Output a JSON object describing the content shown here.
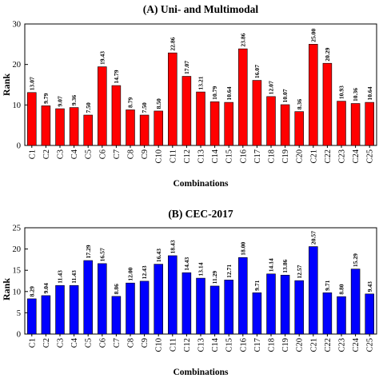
{
  "chart_data": [
    {
      "type": "bar",
      "title": "(A) Uni- and Multimodal",
      "xlabel": "Combinations",
      "ylabel": "Rank",
      "ylim": [
        0,
        30
      ],
      "yticks": [
        "0",
        "10",
        "20",
        "30"
      ],
      "color": "#ff0000",
      "categories": [
        "C1",
        "C2",
        "C3",
        "C4",
        "C5",
        "C6",
        "C7",
        "C8",
        "C9",
        "C10",
        "C11",
        "C12",
        "C13",
        "C14",
        "C15",
        "C16",
        "C17",
        "C18",
        "C19",
        "C20",
        "C21",
        "C22",
        "C23",
        "C24",
        "C25"
      ],
      "values": [
        13.07,
        9.79,
        9.07,
        9.36,
        7.5,
        19.43,
        14.79,
        8.79,
        7.5,
        8.5,
        22.86,
        17.07,
        13.21,
        10.79,
        10.64,
        23.86,
        16.07,
        12.07,
        10.07,
        8.36,
        25.0,
        20.29,
        10.93,
        10.36,
        10.64
      ],
      "labels": [
        "13.07",
        "9.79",
        "9.07",
        "9.36",
        "7.50",
        "19.43",
        "14.79",
        "8.79",
        "7.50",
        "8.50",
        "22.86",
        "17.07",
        "13.21",
        "10.79",
        "10.64",
        "23.86",
        "16.07",
        "12.07",
        "10.07",
        "8.36",
        "25.00",
        "20.29",
        "10.93",
        "10.36",
        "10.64"
      ]
    },
    {
      "type": "bar",
      "title": "(B) CEC-2017",
      "xlabel": "Combinations",
      "ylabel": "Rank",
      "ylim": [
        0,
        25
      ],
      "yticks": [
        "0",
        "5",
        "10",
        "15",
        "20",
        "25"
      ],
      "color": "#0000ff",
      "categories": [
        "C1",
        "C2",
        "C3",
        "C4",
        "C5",
        "C6",
        "C7",
        "C8",
        "C9",
        "C10",
        "C11",
        "C12",
        "C13",
        "C14",
        "C15",
        "C16",
        "C17",
        "C18",
        "C19",
        "C20",
        "C21",
        "C22",
        "C23",
        "C24",
        "C25"
      ],
      "values": [
        8.29,
        9.04,
        11.43,
        11.43,
        17.29,
        16.57,
        8.86,
        12.0,
        12.43,
        16.43,
        18.43,
        14.43,
        13.14,
        11.29,
        12.71,
        18.0,
        9.71,
        14.14,
        13.86,
        12.57,
        20.57,
        9.71,
        8.8,
        15.29,
        9.43
      ],
      "labels": [
        "8.29",
        "9.04",
        "11.43",
        "11.43",
        "17.29",
        "16.57",
        "8.86",
        "12.00",
        "12.43",
        "16.43",
        "18.43",
        "14.43",
        "13.14",
        "11.29",
        "12.71",
        "18.00",
        "9.71",
        "14.14",
        "13.86",
        "12.57",
        "20.57",
        "9.71",
        "8.80",
        "15.29",
        "9.43"
      ]
    }
  ]
}
